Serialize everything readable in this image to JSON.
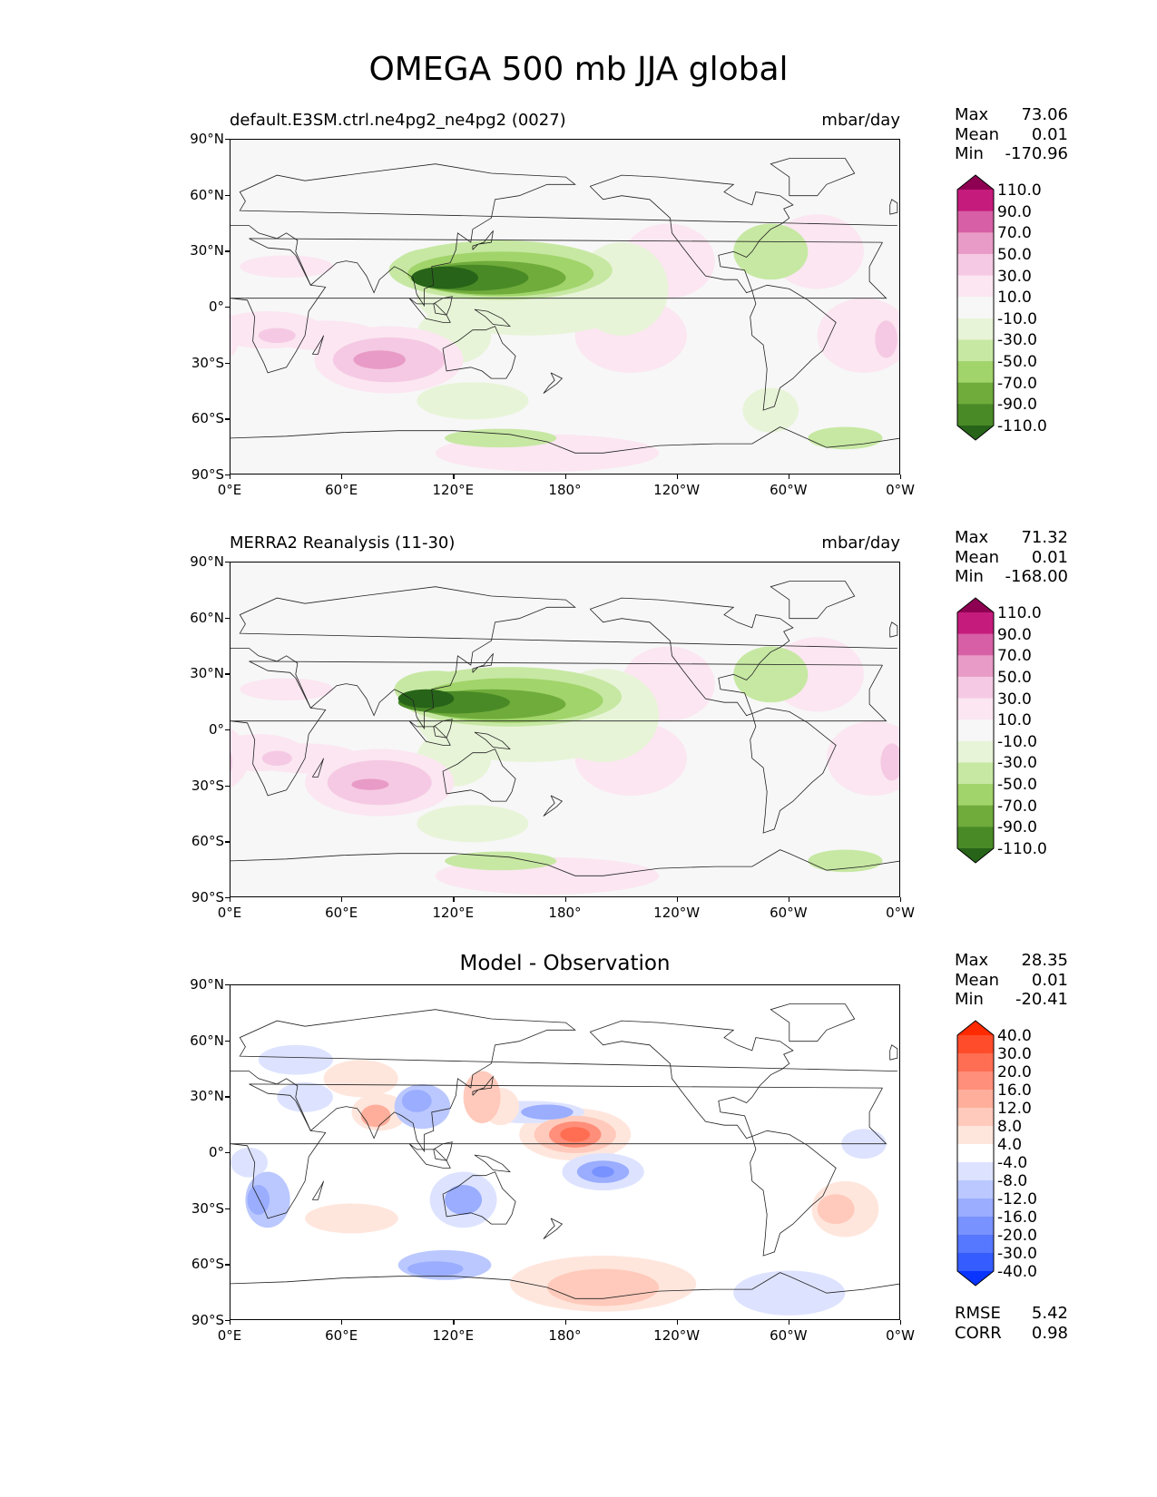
{
  "title": "OMEGA 500 mb JJA global",
  "lat_ticks": [
    "90°N",
    "60°N",
    "30°N",
    "0°",
    "30°S",
    "60°S",
    "90°S"
  ],
  "lon_ticks": [
    "0°E",
    "60°E",
    "120°E",
    "180°",
    "120°W",
    "60°W",
    "0°W"
  ],
  "panels": [
    {
      "id": "model",
      "left_title": "default.E3SM.ctrl.ne4pg2_ne4pg2 (0027)",
      "right_title": "mbar/day",
      "center_title": "",
      "stats": [
        {
          "k": "Max",
          "v": "73.06"
        },
        {
          "k": "Mean",
          "v": "0.01"
        },
        {
          "k": "Min",
          "v": "-170.96"
        }
      ],
      "colorbar": {
        "labels": [
          "110.0",
          "90.0",
          "70.0",
          "50.0",
          "30.0",
          "10.0",
          "-10.0",
          "-30.0",
          "-50.0",
          "-70.0",
          "-90.0",
          "-110.0"
        ],
        "colors": [
          "#8e0152",
          "#c51b7d",
          "#d75fa5",
          "#e89bc6",
          "#f5c9e3",
          "#fbe6f1",
          "#f7f7f7",
          "#e8f4d8",
          "#c7e8a3",
          "#a1d46a",
          "#6fac3c",
          "#4a8a26",
          "#276419"
        ]
      }
    },
    {
      "id": "obs",
      "left_title": "MERRA2 Reanalysis (11-30)",
      "right_title": "mbar/day",
      "center_title": "",
      "stats": [
        {
          "k": "Max",
          "v": "71.32"
        },
        {
          "k": "Mean",
          "v": "0.01"
        },
        {
          "k": "Min",
          "v": "-168.00"
        }
      ],
      "colorbar": {
        "labels": [
          "110.0",
          "90.0",
          "70.0",
          "50.0",
          "30.0",
          "10.0",
          "-10.0",
          "-30.0",
          "-50.0",
          "-70.0",
          "-90.0",
          "-110.0"
        ],
        "colors": [
          "#8e0152",
          "#c51b7d",
          "#d75fa5",
          "#e89bc6",
          "#f5c9e3",
          "#fbe6f1",
          "#f7f7f7",
          "#e8f4d8",
          "#c7e8a3",
          "#a1d46a",
          "#6fac3c",
          "#4a8a26",
          "#276419"
        ]
      }
    },
    {
      "id": "diff",
      "left_title": "",
      "right_title": "",
      "center_title": "Model - Observation",
      "stats": [
        {
          "k": "Max",
          "v": "28.35"
        },
        {
          "k": "Mean",
          "v": "0.01"
        },
        {
          "k": "Min",
          "v": "-20.41"
        }
      ],
      "extra_stats": [
        {
          "k": "RMSE",
          "v": "5.42"
        },
        {
          "k": "CORR",
          "v": "0.98"
        }
      ],
      "colorbar": {
        "labels": [
          "40.0",
          "30.0",
          "20.0",
          "16.0",
          "12.0",
          "8.0",
          "4.0",
          "-4.0",
          "-8.0",
          "-12.0",
          "-16.0",
          "-20.0",
          "-30.0",
          "-40.0"
        ],
        "colors": [
          "#ff2a00",
          "#ff4c2a",
          "#ff6e52",
          "#ff8f7a",
          "#ffae9c",
          "#ffcabb",
          "#ffe6dd",
          "#ffffff",
          "#dde3ff",
          "#bbc8ff",
          "#9aadff",
          "#7892ff",
          "#5677ff",
          "#345cff",
          "#0a34ff"
        ]
      }
    }
  ]
}
